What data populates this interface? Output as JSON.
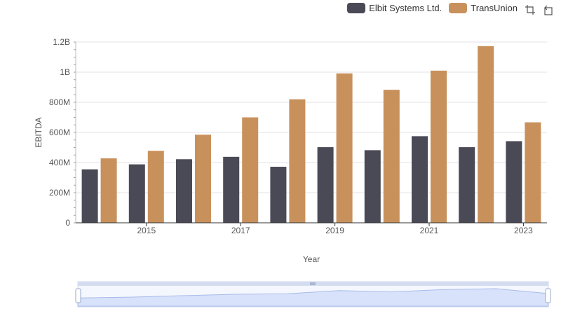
{
  "legend": {
    "items": [
      {
        "label": "Elbit Systems Ltd.",
        "color": "#4a4a57"
      },
      {
        "label": "TransUnion",
        "color": "#c8915c"
      }
    ]
  },
  "toolbox": {
    "icons": [
      "zoom-icon",
      "restore-icon"
    ]
  },
  "chart_data": {
    "type": "bar",
    "xlabel": "Year",
    "ylabel": "EBITDA",
    "x": [
      2014,
      2015,
      2016,
      2017,
      2018,
      2019,
      2020,
      2021,
      2022,
      2023
    ],
    "x_tick_labels": [
      "2015",
      "2017",
      "2019",
      "2021",
      "2023"
    ],
    "y_tick_labels": [
      "0",
      "200M",
      "400M",
      "600M",
      "800M",
      "1B",
      "1.2B"
    ],
    "ylim": [
      0,
      1200000000
    ],
    "grid": true,
    "legend_position": "top-right",
    "series": [
      {
        "name": "Elbit Systems Ltd.",
        "color": "#4a4a57",
        "values": [
          355000000,
          388000000,
          422000000,
          438000000,
          372000000,
          502000000,
          482000000,
          575000000,
          502000000,
          542000000
        ]
      },
      {
        "name": "TransUnion",
        "color": "#c8915c",
        "values": [
          428000000,
          478000000,
          585000000,
          700000000,
          820000000,
          992000000,
          883000000,
          1010000000,
          1173000000,
          667000000
        ]
      }
    ]
  }
}
